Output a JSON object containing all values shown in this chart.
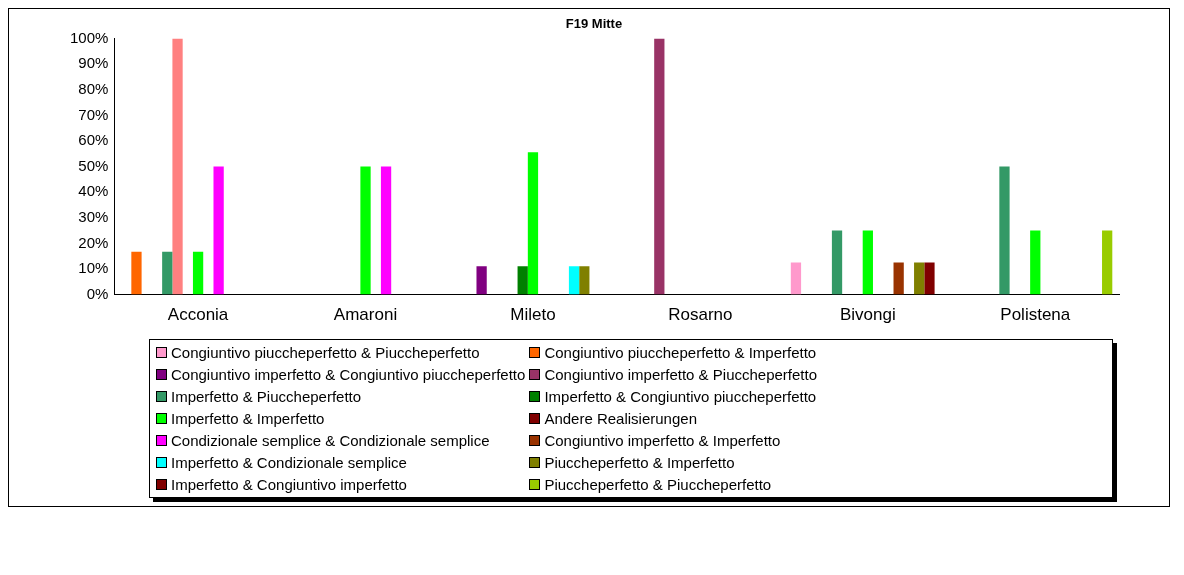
{
  "chart_data": {
    "type": "bar",
    "title": "F19 Mitte",
    "categories": [
      "Acconia",
      "Amaroni",
      "Mileto",
      "Rosarno",
      "Bivongi",
      "Polistena"
    ],
    "ylim": [
      0,
      100
    ],
    "yticks": [
      {
        "value": 0,
        "label": "0%"
      },
      {
        "value": 10,
        "label": "10%"
      },
      {
        "value": 20,
        "label": "20%"
      },
      {
        "value": 30,
        "label": "30%"
      },
      {
        "value": 40,
        "label": "40%"
      },
      {
        "value": 50,
        "label": "50%"
      },
      {
        "value": 60,
        "label": "60%"
      },
      {
        "value": 70,
        "label": "70%"
      },
      {
        "value": 80,
        "label": "80%"
      },
      {
        "value": 90,
        "label": "90%"
      },
      {
        "value": 100,
        "label": "100%"
      }
    ],
    "grid": false,
    "legend": "bottom",
    "series": [
      {
        "name": "Congiuntivo piuccheperfetto & Piuccheperfetto",
        "color": "#ff99cc",
        "values": [
          0,
          0,
          0,
          0,
          12.5,
          0
        ]
      },
      {
        "name": "Congiuntivo piuccheperfetto & Imperfetto",
        "color": "#ff6600",
        "values": [
          16.7,
          0,
          0,
          0,
          0,
          0
        ]
      },
      {
        "name": "Congiuntivo imperfetto & Congiuntivo piuccheperfetto",
        "color": "#800080",
        "values": [
          0,
          0,
          11.1,
          0,
          0,
          0
        ]
      },
      {
        "name": "Congiuntivo imperfetto & Piuccheperfetto",
        "color": "#993366",
        "values": [
          0,
          0,
          0,
          100,
          0,
          0
        ]
      },
      {
        "name": "Imperfetto & Piuccheperfetto",
        "color": "#339966",
        "values": [
          16.7,
          0,
          0,
          0,
          25,
          50
        ]
      },
      {
        "color": "#ff8080",
        "values": [
          100,
          null,
          null,
          null,
          null,
          null
        ]
      },
      {
        "name": "Imperfetto & Congiuntivo piuccheperfetto",
        "color": "#008000",
        "values": [
          0,
          0,
          11.1,
          0,
          0,
          0
        ]
      },
      {
        "name": "Imperfetto & Imperfetto",
        "color": "#00ff00",
        "values": [
          16.7,
          50,
          55.6,
          0,
          25,
          25
        ]
      },
      {
        "name": "Andere Realisierungen",
        "color": "#800000",
        "values": [
          0,
          0,
          0,
          0,
          0,
          0
        ]
      },
      {
        "name": "Condizionale semplice & Condizionale semplice",
        "color": "#ff00ff",
        "values": [
          50,
          50,
          0,
          0,
          0,
          0
        ]
      },
      {
        "name": "Congiuntivo imperfetto & Imperfetto",
        "color": "#993300",
        "values": [
          0,
          0,
          0,
          0,
          12.5,
          0
        ]
      },
      {
        "name": "Imperfetto & Condizionale semplice",
        "color": "#00ffff",
        "values": [
          0,
          0,
          11.1,
          0,
          0,
          0
        ]
      },
      {
        "name": "Piuccheperfetto & Imperfetto",
        "color": "#808000",
        "values": [
          0,
          0,
          11.1,
          0,
          12.5,
          0
        ]
      },
      {
        "name": "Imperfetto & Congiuntivo imperfetto",
        "color": "#800000",
        "values": [
          0,
          0,
          0,
          0,
          12.5,
          0
        ]
      },
      {
        "name": "Piuccheperfetto & Piuccheperfetto",
        "color": "#99cc00",
        "values": [
          0,
          0,
          0,
          0,
          0,
          25
        ]
      }
    ]
  }
}
